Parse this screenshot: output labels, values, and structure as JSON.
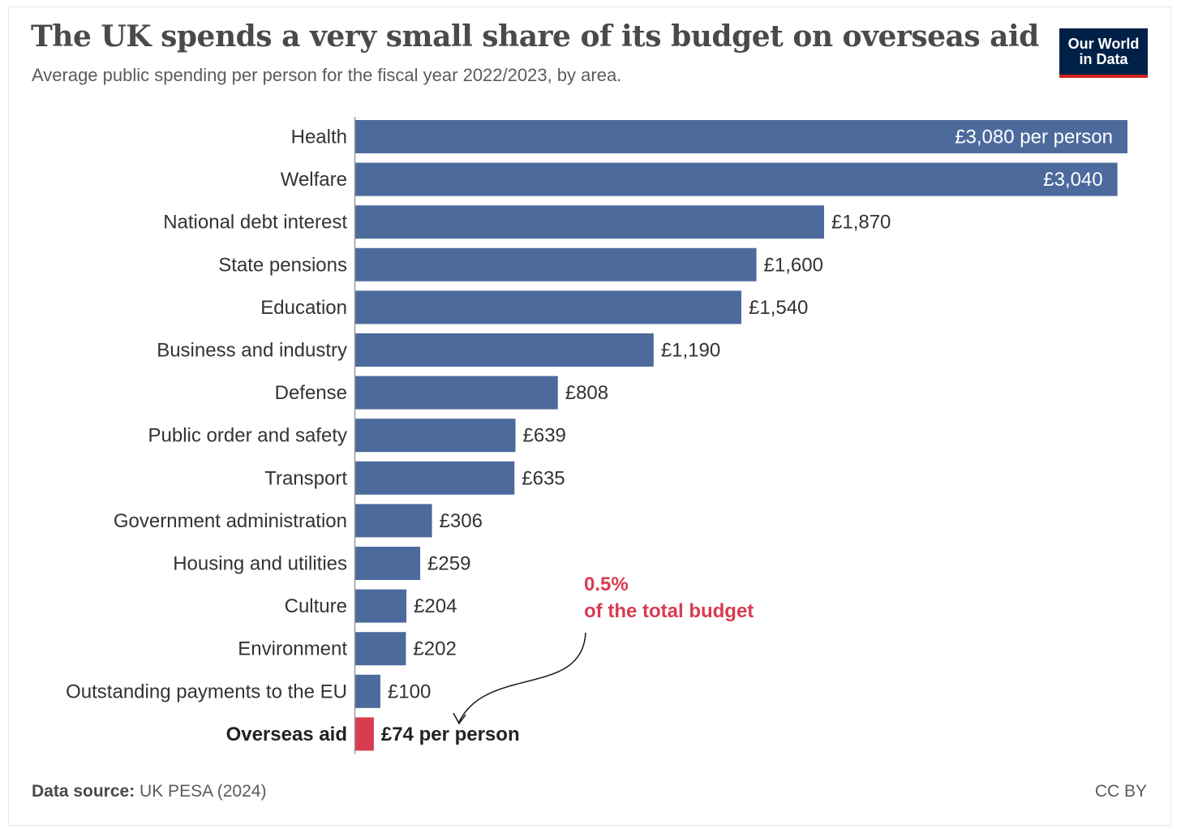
{
  "header": {
    "title": "The UK spends a very small share of its budget on overseas aid",
    "subtitle": "Average public spending per person for the fiscal year 2022/2023, by area."
  },
  "logo": {
    "line1": "Our World",
    "line2": "in Data"
  },
  "footer": {
    "source_label": "Data source:",
    "source_text": " UK PESA (2024)",
    "license": "CC BY"
  },
  "colors": {
    "bar": "#4c6a9c",
    "highlight": "#d73c50",
    "axis": "#999999"
  },
  "chart_data": {
    "type": "bar",
    "orientation": "horizontal",
    "title": "The UK spends a very small share of its budget on overseas aid",
    "subtitle": "Average public spending per person for the fiscal year 2022/2023, by area.",
    "categories": [
      "Health",
      "Welfare",
      "National debt interest",
      "State pensions",
      "Education",
      "Business and industry",
      "Defense",
      "Public order and safety",
      "Transport",
      "Government administration",
      "Housing and utilities",
      "Culture",
      "Environment",
      "Outstanding payments to the EU",
      "Overseas aid"
    ],
    "values": [
      3080,
      3040,
      1870,
      1600,
      1540,
      1190,
      808,
      639,
      635,
      306,
      259,
      204,
      202,
      100,
      74
    ],
    "value_labels": [
      "£3,080 per person",
      "£3,040",
      "£1,870",
      "£1,600",
      "£1,540",
      "£1,190",
      "£808",
      "£639",
      "£635",
      "£306",
      "£259",
      "£204",
      "£202",
      "£100",
      "£74 per person"
    ],
    "highlight": "Overseas aid",
    "xlim": [
      0,
      3080
    ],
    "grid": false,
    "legend": "none",
    "annotation": {
      "line1": "0.5%",
      "line2": "of the total budget",
      "target": "Overseas aid"
    }
  }
}
